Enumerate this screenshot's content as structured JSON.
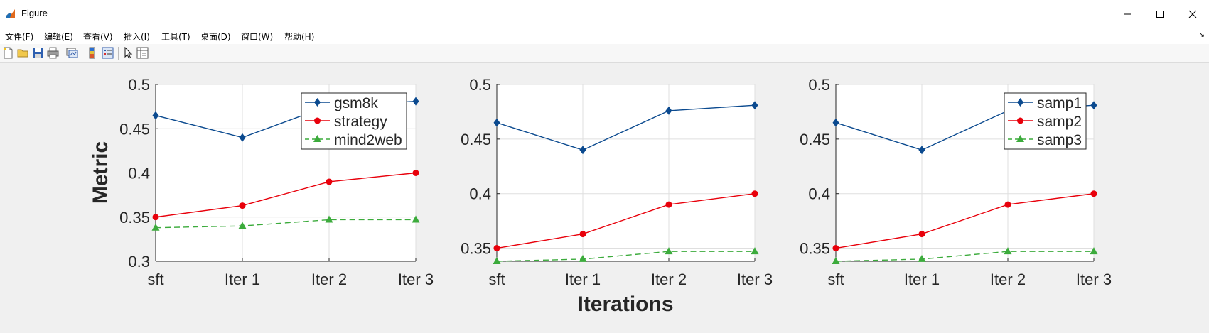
{
  "window": {
    "title": "Figure"
  },
  "menu": [
    "文件(F)",
    "编辑(E)",
    "查看(V)",
    "插入(I)",
    "工具(T)",
    "桌面(D)",
    "窗口(W)",
    "帮助(H)"
  ],
  "toolbar_icons": [
    "new-figure-icon",
    "open-file-icon",
    "save-icon",
    "print-icon",
    "link-plot-icon",
    "insert-colorbar-icon",
    "insert-legend-icon",
    "edit-plot-icon",
    "property-inspector-icon"
  ],
  "figure": {
    "ylabel": "Metric",
    "xlabel": "Iterations"
  },
  "colors": {
    "series1": "#0b4a8f",
    "series2": "#e8000b",
    "series3": "#3cab3c"
  },
  "chart_data": [
    {
      "type": "line",
      "categories": [
        "sft",
        "Iter 1",
        "Iter 2",
        "Iter 3"
      ],
      "ylim": [
        0.3,
        0.5
      ],
      "yticks": [
        0.3,
        0.35,
        0.4,
        0.45,
        0.5
      ],
      "ytick_labels": [
        "0.3",
        "0.35",
        "0.4",
        "0.45",
        "0.5"
      ],
      "grid": true,
      "legend": "top-right",
      "series": [
        {
          "name": "gsm8k",
          "values": [
            0.465,
            0.44,
            0.476,
            0.481
          ],
          "marker": "diamond",
          "line": "solid"
        },
        {
          "name": "strategy",
          "values": [
            0.35,
            0.363,
            0.39,
            0.4
          ],
          "marker": "circle",
          "line": "solid"
        },
        {
          "name": "mind2web",
          "values": [
            0.338,
            0.34,
            0.347,
            0.347
          ],
          "marker": "triangle",
          "line": "dashed"
        }
      ]
    },
    {
      "type": "line",
      "categories": [
        "sft",
        "Iter 1",
        "Iter 2",
        "Iter 3"
      ],
      "ylim": [
        0.338,
        0.5
      ],
      "yticks": [
        0.35,
        0.4,
        0.45,
        0.5
      ],
      "ytick_labels": [
        "0.35",
        "0.4",
        "0.45",
        "0.5"
      ],
      "grid": true,
      "series": [
        {
          "values": [
            0.465,
            0.44,
            0.476,
            0.481
          ],
          "marker": "diamond",
          "line": "solid"
        },
        {
          "values": [
            0.35,
            0.363,
            0.39,
            0.4
          ],
          "marker": "circle",
          "line": "solid"
        },
        {
          "values": [
            0.338,
            0.34,
            0.347,
            0.347
          ],
          "marker": "triangle",
          "line": "dashed"
        }
      ]
    },
    {
      "type": "line",
      "categories": [
        "sft",
        "Iter 1",
        "Iter 2",
        "Iter 3"
      ],
      "ylim": [
        0.338,
        0.5
      ],
      "yticks": [
        0.35,
        0.4,
        0.45,
        0.5
      ],
      "ytick_labels": [
        "0.35",
        "0.4",
        "0.45",
        "0.5"
      ],
      "grid": true,
      "legend": "top-right",
      "series": [
        {
          "name": "samp1",
          "values": [
            0.465,
            0.44,
            0.476,
            0.481
          ],
          "marker": "diamond",
          "line": "solid"
        },
        {
          "name": "samp2",
          "values": [
            0.35,
            0.363,
            0.39,
            0.4
          ],
          "marker": "circle",
          "line": "solid"
        },
        {
          "name": "samp3",
          "values": [
            0.338,
            0.34,
            0.347,
            0.347
          ],
          "marker": "triangle",
          "line": "dashed"
        }
      ]
    }
  ]
}
